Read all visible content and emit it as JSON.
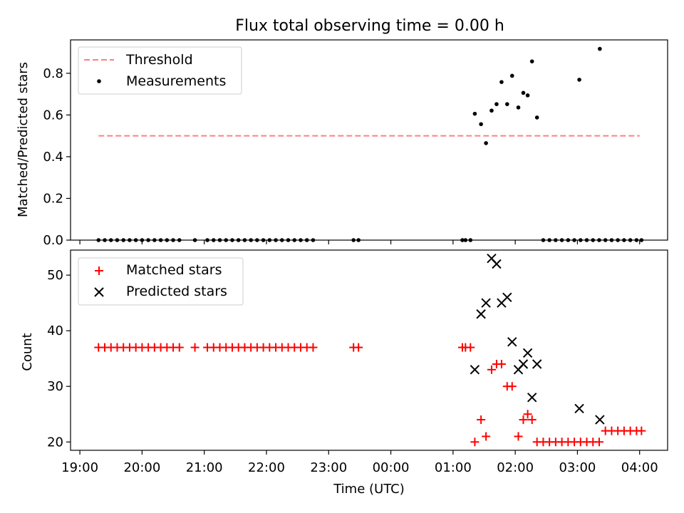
{
  "title": "Flux total observing time = 0.00 h",
  "chart_data": [
    {
      "type": "scatter",
      "ylabel": "Matched/Predicted stars",
      "ylim": [
        0,
        0.96
      ],
      "yticks": [
        "0.0",
        "0.2",
        "0.4",
        "0.6",
        "0.8"
      ],
      "ytick_values": [
        0,
        0.2,
        0.4,
        0.6,
        0.8
      ],
      "legend_position": "upper-left",
      "threshold": {
        "name": "Threshold",
        "y": 0.5,
        "x_start": 19.3,
        "x_end": 28.0,
        "color": "#ff7f7f"
      },
      "series": [
        {
          "name": "Measurements",
          "color": "#000000",
          "marker": "dot",
          "x": [
            19.3,
            19.4,
            19.5,
            19.6,
            19.7,
            19.8,
            19.9,
            20.0,
            20.1,
            20.2,
            20.3,
            20.4,
            20.5,
            20.6,
            20.85,
            21.05,
            21.15,
            21.25,
            21.35,
            21.45,
            21.55,
            21.65,
            21.75,
            21.85,
            21.95,
            22.05,
            22.15,
            22.25,
            22.35,
            22.45,
            22.55,
            22.65,
            22.75,
            23.4,
            23.48,
            25.15,
            25.2,
            25.28,
            25.35,
            25.45,
            25.53,
            25.62,
            25.7,
            25.78,
            25.87,
            25.95,
            26.05,
            26.13,
            26.2,
            26.27,
            26.35,
            26.45,
            26.55,
            26.65,
            26.75,
            26.85,
            26.95,
            27.05,
            27.03,
            27.15,
            27.25,
            27.35,
            27.36,
            27.45,
            27.55,
            27.65,
            27.75,
            27.85,
            27.95,
            28.03
          ],
          "y": [
            0,
            0,
            0,
            0,
            0,
            0,
            0,
            0,
            0,
            0,
            0,
            0,
            0,
            0,
            0,
            0,
            0,
            0,
            0,
            0,
            0,
            0,
            0,
            0,
            0,
            0,
            0,
            0,
            0,
            0,
            0,
            0,
            0,
            0,
            0,
            0,
            0,
            0,
            0.606,
            0.556,
            0.465,
            0.621,
            0.652,
            0.758,
            0.652,
            0.788,
            0.636,
            0.706,
            0.694,
            0.857,
            0.588,
            0,
            0,
            0,
            0,
            0,
            0,
            0,
            0.769,
            0,
            0,
            0,
            0.917,
            0,
            0,
            0,
            0,
            0,
            0,
            0
          ]
        }
      ]
    },
    {
      "type": "scatter",
      "xlabel": "Time (UTC)",
      "ylabel": "Count",
      "ylim": [
        18.5,
        54.5
      ],
      "yticks": [
        "20",
        "30",
        "40",
        "50"
      ],
      "ytick_values": [
        20,
        30,
        40,
        50
      ],
      "xlim": [
        18.85,
        28.45
      ],
      "xticks": [
        "19:00",
        "20:00",
        "21:00",
        "22:00",
        "23:00",
        "00:00",
        "01:00",
        "02:00",
        "03:00",
        "04:00"
      ],
      "xtick_values": [
        19,
        20,
        21,
        22,
        23,
        24,
        25,
        26,
        27,
        28
      ],
      "legend_position": "upper-left",
      "series": [
        {
          "name": "Matched stars",
          "color": "#ff0000",
          "marker": "plus",
          "x": [
            19.3,
            19.4,
            19.5,
            19.6,
            19.7,
            19.8,
            19.9,
            20.0,
            20.1,
            20.2,
            20.3,
            20.4,
            20.5,
            20.6,
            20.85,
            21.05,
            21.15,
            21.25,
            21.35,
            21.45,
            21.55,
            21.65,
            21.75,
            21.85,
            21.95,
            22.05,
            22.15,
            22.25,
            22.35,
            22.45,
            22.55,
            22.65,
            22.75,
            23.4,
            23.48,
            25.15,
            25.2,
            25.28,
            25.35,
            25.45,
            25.53,
            25.62,
            25.7,
            25.78,
            25.87,
            25.95,
            26.05,
            26.13,
            26.2,
            26.27,
            26.35,
            26.45,
            26.55,
            26.65,
            26.75,
            26.85,
            26.95,
            27.05,
            27.15,
            27.25,
            27.35,
            27.45,
            27.55,
            27.65,
            27.75,
            27.85,
            27.95,
            28.03
          ],
          "y": [
            37,
            37,
            37,
            37,
            37,
            37,
            37,
            37,
            37,
            37,
            37,
            37,
            37,
            37,
            37,
            37,
            37,
            37,
            37,
            37,
            37,
            37,
            37,
            37,
            37,
            37,
            37,
            37,
            37,
            37,
            37,
            37,
            37,
            37,
            37,
            37,
            37,
            37,
            20,
            24,
            21,
            33,
            34,
            34,
            30,
            30,
            21,
            24,
            25,
            24,
            20,
            20,
            20,
            20,
            20,
            20,
            20,
            20,
            20,
            20,
            20,
            22,
            22,
            22,
            22,
            22,
            22,
            22
          ]
        },
        {
          "name": "Predicted stars",
          "color": "#000000",
          "marker": "x",
          "x": [
            25.35,
            25.45,
            25.53,
            25.62,
            25.7,
            25.78,
            25.87,
            25.95,
            26.05,
            26.13,
            26.2,
            26.27,
            26.35,
            27.03,
            27.36
          ],
          "y": [
            33,
            43,
            45,
            53,
            52,
            45,
            46,
            38,
            33,
            34,
            36,
            28,
            34,
            26,
            24
          ]
        }
      ]
    }
  ]
}
